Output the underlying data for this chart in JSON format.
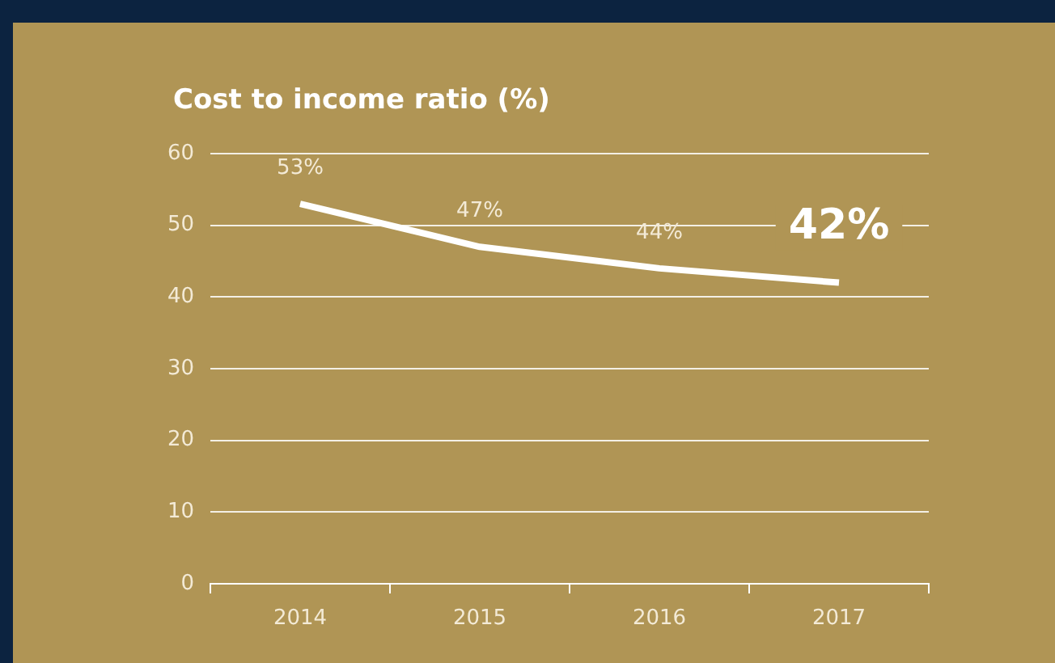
{
  "chart_data": {
    "type": "line",
    "title": "Cost to income ratio (%)",
    "categories": [
      "2014",
      "2015",
      "2016",
      "2017"
    ],
    "series": [
      {
        "color": "#ffffff",
        "values": [
          53,
          47,
          44,
          42
        ],
        "value_labels": [
          "53%",
          "47%",
          "44%",
          "42%"
        ]
      }
    ],
    "ylim": [
      0,
      60
    ],
    "yticks": [
      0,
      10,
      20,
      30,
      40,
      50,
      60
    ],
    "grid": "y",
    "legend": false,
    "marker": "none",
    "line_style": "solid"
  }
}
